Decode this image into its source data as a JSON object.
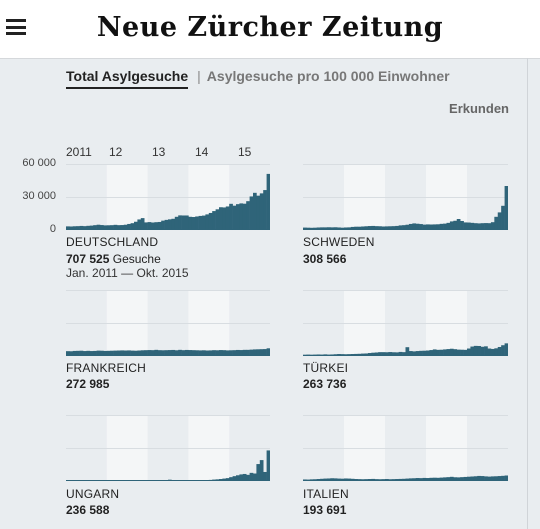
{
  "header": {
    "logo_text": "Neue Zürcher Zeitung",
    "menu_icon": "hamburger-menu-icon"
  },
  "tabs": [
    {
      "label": "Total Asylgesuche",
      "active": true
    },
    {
      "label": "Asylgesuche pro 100 000 Einwohner",
      "active": false
    }
  ],
  "tab_separator": "|",
  "explore_label": "Erkunden",
  "year_labels": [
    "2011",
    "12",
    "13",
    "14",
    "15"
  ],
  "y_axis_labels": [
    "60 000",
    "30 000",
    "0"
  ],
  "colors": {
    "bars": "#2f6479",
    "shade": "#f4f6f7",
    "background": "#e9edf0"
  },
  "unit_label": "Gesuche",
  "date_range": "Jan. 2011 — Okt. 2015",
  "chart_data": [
    {
      "type": "bar",
      "country": "DEUTSCHLAND",
      "total": "707 525",
      "x_start": "2011-01",
      "x_end": "2015-10",
      "ylim": [
        0,
        60000
      ],
      "values": [
        3300,
        3200,
        3400,
        3500,
        3700,
        3500,
        3800,
        4000,
        4400,
        4800,
        4500,
        4200,
        4300,
        4400,
        4700,
        4400,
        4500,
        4800,
        5500,
        6200,
        7500,
        9600,
        10800,
        6900,
        7200,
        6800,
        7100,
        7300,
        8500,
        9200,
        9700,
        10200,
        12000,
        13300,
        13200,
        13200,
        12000,
        11800,
        12300,
        12800,
        13100,
        14200,
        15500,
        17200,
        18800,
        20700,
        20500,
        21400,
        23800,
        22100,
        23500,
        24200,
        23900,
        26200,
        30500,
        33800,
        31200,
        33300,
        36300,
        51000
      ]
    },
    {
      "type": "bar",
      "country": "SCHWEDEN",
      "total": "308 566",
      "x_start": "2011-01",
      "x_end": "2015-10",
      "ylim": [
        0,
        60000
      ],
      "values": [
        2200,
        2100,
        2000,
        2100,
        2300,
        2400,
        2400,
        2500,
        2400,
        2500,
        2300,
        2100,
        2300,
        2400,
        2800,
        3000,
        3000,
        3200,
        3400,
        3600,
        3700,
        3500,
        3400,
        3200,
        3300,
        3400,
        3500,
        3700,
        4200,
        4400,
        4800,
        5500,
        6000,
        5700,
        5400,
        4900,
        5100,
        5000,
        5100,
        5200,
        5600,
        5800,
        6500,
        7800,
        8400,
        10000,
        8200,
        6900,
        6800,
        6500,
        6200,
        6000,
        6200,
        6300,
        6200,
        7100,
        12000,
        16000,
        22000,
        40000
      ]
    },
    {
      "type": "bar",
      "country": "FRANKREICH",
      "total": "272 985",
      "x_start": "2011-01",
      "x_end": "2015-10",
      "ylim": [
        0,
        60000
      ],
      "values": [
        4400,
        4300,
        4600,
        4700,
        4800,
        4500,
        4700,
        4500,
        4600,
        4900,
        4800,
        4600,
        4700,
        4800,
        4900,
        5000,
        5100,
        5000,
        5100,
        4900,
        4800,
        5000,
        5200,
        5300,
        5400,
        5300,
        5600,
        5300,
        5200,
        5300,
        5400,
        5500,
        5200,
        5600,
        5300,
        5500,
        5400,
        5300,
        5200,
        5100,
        5200,
        5000,
        5100,
        5300,
        5200,
        5400,
        5300,
        5100,
        5200,
        5300,
        5500,
        5400,
        5600,
        5600,
        5800,
        6000,
        6100,
        6200,
        6300,
        7000
      ]
    },
    {
      "type": "bar",
      "country": "TÜRKEI",
      "total": "263 736",
      "x_start": "2011-01",
      "x_end": "2015-10",
      "ylim": [
        0,
        60000
      ],
      "values": [
        1200,
        1300,
        1200,
        1300,
        1400,
        1300,
        1500,
        1300,
        1400,
        1600,
        1800,
        1700,
        1600,
        1700,
        1800,
        1900,
        2000,
        2200,
        2300,
        2700,
        3000,
        3200,
        3500,
        3500,
        3400,
        3600,
        3400,
        3300,
        3700,
        3500,
        8000,
        4500,
        4200,
        4500,
        4700,
        4800,
        5000,
        5400,
        6000,
        5600,
        5700,
        6000,
        6300,
        6600,
        6200,
        5800,
        5700,
        5600,
        6800,
        8600,
        9200,
        9100,
        8400,
        8800,
        6800,
        6400,
        7000,
        8200,
        9800,
        11500
      ]
    },
    {
      "type": "bar",
      "country": "UNGARN",
      "total": "236 588",
      "x_start": "2011-01",
      "x_end": "2015-10",
      "ylim": [
        0,
        60000
      ],
      "values": [
        0,
        0,
        0,
        0,
        0,
        0,
        0,
        0,
        0,
        0,
        0,
        0,
        0,
        0,
        0,
        0,
        0,
        0,
        0,
        0,
        0,
        0,
        0,
        0,
        0,
        0,
        200,
        400,
        600,
        800,
        1200,
        800,
        700,
        600,
        600,
        500,
        400,
        400,
        500,
        600,
        700,
        800,
        1000,
        1300,
        1500,
        1800,
        2200,
        2600,
        3500,
        4400,
        5200,
        6000,
        6400,
        5600,
        7400,
        6800,
        15400,
        19000,
        8200,
        27800
      ]
    },
    {
      "type": "bar",
      "country": "ITALIEN",
      "total": "193 691",
      "x_start": "2011-01",
      "x_end": "2015-10",
      "ylim": [
        0,
        60000
      ],
      "values": [
        1400,
        1300,
        1500,
        1600,
        1800,
        2000,
        2200,
        2300,
        2500,
        2400,
        2200,
        2100,
        2300,
        2200,
        2000,
        1800,
        1700,
        1600,
        1700,
        1800,
        1900,
        1700,
        1600,
        1700,
        1800,
        1600,
        1700,
        1800,
        1900,
        2000,
        2200,
        2400,
        2500,
        2700,
        2600,
        2800,
        2700,
        2900,
        3000,
        2900,
        3100,
        3300,
        3500,
        3800,
        3400,
        3300,
        3500,
        3700,
        3900,
        4100,
        4300,
        4600,
        4500,
        4200,
        4000,
        4200,
        4300,
        4500,
        4700,
        5000
      ]
    }
  ]
}
